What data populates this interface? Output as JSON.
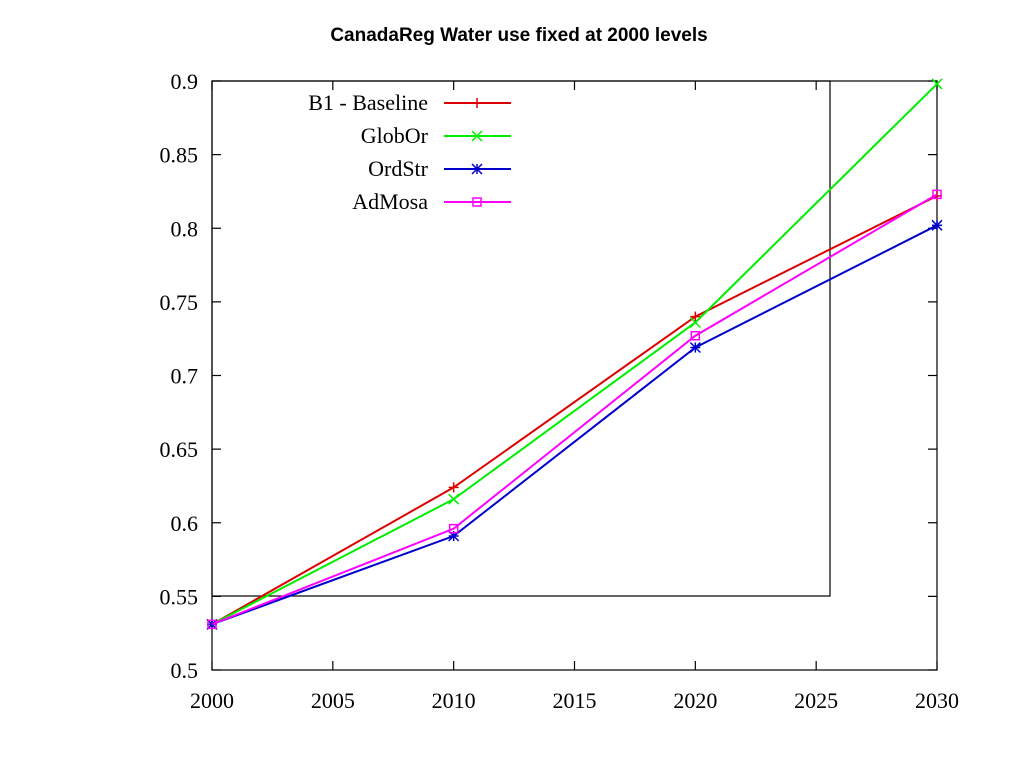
{
  "chart_data": {
    "type": "line",
    "title": "CanadaReg Water use fixed at 2000 levels",
    "xlabel": "",
    "ylabel": "",
    "xlim": [
      2000,
      2030
    ],
    "ylim": [
      0.5,
      0.9
    ],
    "x_ticks": [
      "2000",
      "2005",
      "2010",
      "2015",
      "2020",
      "2025",
      "2030"
    ],
    "y_ticks": [
      "0.5",
      "0.55",
      "0.6",
      "0.65",
      "0.7",
      "0.75",
      "0.8",
      "0.85",
      "0.9"
    ],
    "x": [
      2000,
      2010,
      2020,
      2030
    ],
    "legend_position": "top-left",
    "grid": false,
    "series": [
      {
        "name": "B1 - Baseline",
        "color": "#dd0000",
        "marker": "plus",
        "values": [
          0.531,
          0.624,
          0.74,
          0.822
        ]
      },
      {
        "name": "GlobOr",
        "color": "#00ee00",
        "marker": "cross",
        "values": [
          0.531,
          0.616,
          0.736,
          0.898
        ]
      },
      {
        "name": "OrdStr",
        "color": "#0000cc",
        "marker": "star",
        "values": [
          0.531,
          0.591,
          0.719,
          0.802
        ]
      },
      {
        "name": "AdMosa",
        "color": "#ff00ff",
        "marker": "square",
        "values": [
          0.531,
          0.596,
          0.727,
          0.823
        ]
      }
    ]
  }
}
